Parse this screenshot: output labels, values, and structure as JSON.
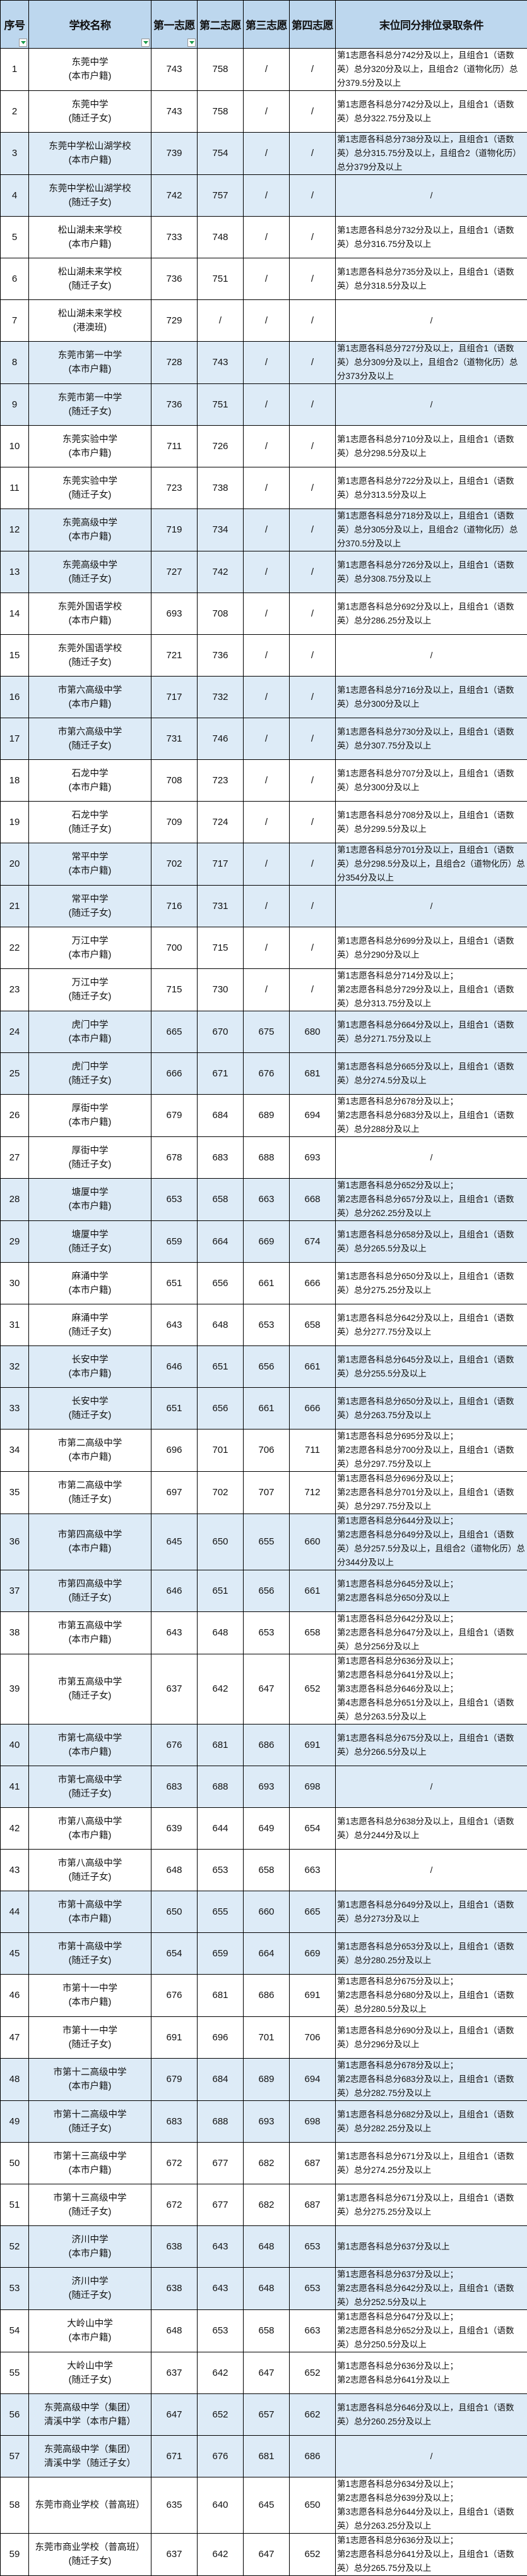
{
  "colors": {
    "header_bg": "#bdd7ee",
    "highlight_row_bg": "#ddebf7",
    "filter_arrow": "#1a9a4a"
  },
  "header": {
    "no": "序号",
    "school": "学校名称",
    "v1": "第一志愿",
    "v2": "第二志愿",
    "v3": "第三志愿",
    "v4": "第四志愿",
    "cond": "末位同分排位录取条件",
    "filter_icons": [
      "filter-dropdown-icon",
      "filter-dropdown-icon",
      "filter-dropdown-icon"
    ]
  },
  "rows": [
    {
      "no": "1",
      "name": "东莞中学\n(本市户籍)",
      "v1": "743",
      "v2": "758",
      "v3": "/",
      "v4": "/",
      "cond": "第1志愿各科总分742分及以上，且组合1（语数英）总分320分及以上，且组合2（道物化历）总分379.5分及以上",
      "hl": false
    },
    {
      "no": "2",
      "name": "东莞中学\n(随迁子女)",
      "v1": "743",
      "v2": "758",
      "v3": "/",
      "v4": "/",
      "cond": "第1志愿各科总分742分及以上，且组合1（语数英）总分322.75分及以上",
      "hl": false
    },
    {
      "no": "3",
      "name": "东莞中学松山湖学校\n(本市户籍)",
      "v1": "739",
      "v2": "754",
      "v3": "/",
      "v4": "/",
      "cond": "第1志愿各科总分738分及以上，且组合1（语数英）总分315.75分及以上，且组合2（道物化历）总分379分及以上",
      "hl": true
    },
    {
      "no": "4",
      "name": "东莞中学松山湖学校\n(随迁子女)",
      "v1": "742",
      "v2": "757",
      "v3": "/",
      "v4": "/",
      "cond": "/",
      "hl": true
    },
    {
      "no": "5",
      "name": "松山湖未来学校\n(本市户籍)",
      "v1": "733",
      "v2": "748",
      "v3": "/",
      "v4": "/",
      "cond": "第1志愿各科总分732分及以上，且组合1（语数英）总分316.75分及以上",
      "hl": false
    },
    {
      "no": "6",
      "name": "松山湖未来学校\n(随迁子女)",
      "v1": "736",
      "v2": "751",
      "v3": "/",
      "v4": "/",
      "cond": "第1志愿各科总分735分及以上，且组合1（语数英）总分318.5分及以上",
      "hl": false
    },
    {
      "no": "7",
      "name": "松山湖未来学校\n(港澳班)",
      "v1": "729",
      "v2": "/",
      "v3": "/",
      "v4": "/",
      "cond": "/",
      "hl": false
    },
    {
      "no": "8",
      "name": "东莞市第一中学\n(本市户籍)",
      "v1": "728",
      "v2": "743",
      "v3": "/",
      "v4": "/",
      "cond": "第1志愿各科总分727分及以上，且组合1（语数英）总分309分及以上，且组合2（道物化历）总分373分及以上",
      "hl": true
    },
    {
      "no": "9",
      "name": "东莞市第一中学\n(随迁子女)",
      "v1": "736",
      "v2": "751",
      "v3": "/",
      "v4": "/",
      "cond": "/",
      "hl": true
    },
    {
      "no": "10",
      "name": "东莞实验中学\n(本市户籍)",
      "v1": "711",
      "v2": "726",
      "v3": "/",
      "v4": "/",
      "cond": "第1志愿各科总分710分及以上，且组合1（语数英）总分298.5分及以上",
      "hl": false
    },
    {
      "no": "11",
      "name": "东莞实验中学\n(随迁子女)",
      "v1": "723",
      "v2": "738",
      "v3": "/",
      "v4": "/",
      "cond": "第1志愿各科总分722分及以上，且组合1（语数英）总分313.5分及以上",
      "hl": false
    },
    {
      "no": "12",
      "name": "东莞高级中学\n(本市户籍)",
      "v1": "719",
      "v2": "734",
      "v3": "/",
      "v4": "/",
      "cond": "第1志愿各科总分718分及以上，且组合1（语数英）总分305分及以上，且组合2（道物化历）总分370.5分及以上",
      "hl": true
    },
    {
      "no": "13",
      "name": "东莞高级中学\n(随迁子女)",
      "v1": "727",
      "v2": "742",
      "v3": "/",
      "v4": "/",
      "cond": "第1志愿各科总分726分及以上，且组合1（语数英）总分308.75分及以上",
      "hl": true
    },
    {
      "no": "14",
      "name": "东莞外国语学校\n(本市户籍)",
      "v1": "693",
      "v2": "708",
      "v3": "/",
      "v4": "/",
      "cond": "第1志愿各科总分692分及以上，且组合1（语数英）总分286.25分及以上",
      "hl": false
    },
    {
      "no": "15",
      "name": "东莞外国语学校\n(随迁子女)",
      "v1": "721",
      "v2": "736",
      "v3": "/",
      "v4": "/",
      "cond": "/",
      "hl": false
    },
    {
      "no": "16",
      "name": "市第六高级中学\n(本市户籍)",
      "v1": "717",
      "v2": "732",
      "v3": "/",
      "v4": "/",
      "cond": "第1志愿各科总分716分及以上，且组合1（语数英）总分300分及以上",
      "hl": true
    },
    {
      "no": "17",
      "name": "市第六高级中学\n(随迁子女)",
      "v1": "731",
      "v2": "746",
      "v3": "/",
      "v4": "/",
      "cond": "第1志愿各科总分730分及以上，且组合1（语数英）总分307.75分及以上",
      "hl": true
    },
    {
      "no": "18",
      "name": "石龙中学\n(本市户籍)",
      "v1": "708",
      "v2": "723",
      "v3": "/",
      "v4": "/",
      "cond": "第1志愿各科总分707分及以上，且组合1（语数英）总分300分及以上",
      "hl": false
    },
    {
      "no": "19",
      "name": "石龙中学\n(随迁子女)",
      "v1": "709",
      "v2": "724",
      "v3": "/",
      "v4": "/",
      "cond": "第1志愿各科总分708分及以上，且组合1（语数英）总分299.5分及以上",
      "hl": false
    },
    {
      "no": "20",
      "name": "常平中学\n(本市户籍)",
      "v1": "702",
      "v2": "717",
      "v3": "/",
      "v4": "/",
      "cond": "第1志愿各科总分701分及以上，且组合1（语数英）总分298.5分及以上，且组合2（道物化历）总分354分及以上",
      "hl": true
    },
    {
      "no": "21",
      "name": "常平中学\n(随迁子女)",
      "v1": "716",
      "v2": "731",
      "v3": "/",
      "v4": "/",
      "cond": "/",
      "hl": true
    },
    {
      "no": "22",
      "name": "万江中学\n(本市户籍)",
      "v1": "700",
      "v2": "715",
      "v3": "/",
      "v4": "/",
      "cond": "第1志愿各科总分699分及以上，且组合1（语数英）总分290分及以上",
      "hl": false
    },
    {
      "no": "23",
      "name": "万江中学\n(随迁子女)",
      "v1": "715",
      "v2": "730",
      "v3": "/",
      "v4": "/",
      "cond": "第1志愿各科总分714分及以上；\n第2志愿各科总分729分及以上，且组合1（语数英）总分313.75分及以上",
      "hl": false
    },
    {
      "no": "24",
      "name": "虎门中学\n(本市户籍)",
      "v1": "665",
      "v2": "670",
      "v3": "675",
      "v4": "680",
      "cond": "第1志愿各科总分664分及以上，且组合1（语数英）总分271.75分及以上",
      "hl": true
    },
    {
      "no": "25",
      "name": "虎门中学\n(随迁子女)",
      "v1": "666",
      "v2": "671",
      "v3": "676",
      "v4": "681",
      "cond": "第1志愿各科总分665分及以上，且组合1（语数英）总分274.5分及以上",
      "hl": true
    },
    {
      "no": "26",
      "name": "厚街中学\n(本市户籍)",
      "v1": "679",
      "v2": "684",
      "v3": "689",
      "v4": "694",
      "cond": "第1志愿各科总分678分及以上；\n第2志愿各科总分683分及以上，且组合1（语数英）总分288分及以上",
      "hl": false
    },
    {
      "no": "27",
      "name": "厚街中学\n(随迁子女)",
      "v1": "678",
      "v2": "683",
      "v3": "688",
      "v4": "693",
      "cond": "/",
      "hl": false
    },
    {
      "no": "28",
      "name": "塘厦中学\n(本市户籍)",
      "v1": "653",
      "v2": "658",
      "v3": "663",
      "v4": "668",
      "cond": "第1志愿各科总分652分及以上；\n第2志愿各科总分657分及以上，且组合1（语数英）总分262.25分及以上",
      "hl": true
    },
    {
      "no": "29",
      "name": "塘厦中学\n(随迁子女)",
      "v1": "659",
      "v2": "664",
      "v3": "669",
      "v4": "674",
      "cond": "第1志愿各科总分658分及以上，且组合1（语数英）总分265.5分及以上",
      "hl": true
    },
    {
      "no": "30",
      "name": "麻涌中学\n(本市户籍)",
      "v1": "651",
      "v2": "656",
      "v3": "661",
      "v4": "666",
      "cond": "第1志愿各科总分650分及以上，且组合1（语数英）总分275.25分及以上",
      "hl": false
    },
    {
      "no": "31",
      "name": "麻涌中学\n(随迁子女)",
      "v1": "643",
      "v2": "648",
      "v3": "653",
      "v4": "658",
      "cond": "第1志愿各科总分642分及以上，且组合1（语数英）总分277.75分及以上",
      "hl": false
    },
    {
      "no": "32",
      "name": "长安中学\n(本市户籍)",
      "v1": "646",
      "v2": "651",
      "v3": "656",
      "v4": "661",
      "cond": "第1志愿各科总分645分及以上，且组合1（语数英）总分255.5分及以上",
      "hl": true
    },
    {
      "no": "33",
      "name": "长安中学\n(随迁子女)",
      "v1": "651",
      "v2": "656",
      "v3": "661",
      "v4": "666",
      "cond": "第1志愿各科总分650分及以上，且组合1（语数英）总分263.75分及以上",
      "hl": true
    },
    {
      "no": "34",
      "name": "市第二高级中学\n(本市户籍)",
      "v1": "696",
      "v2": "701",
      "v3": "706",
      "v4": "711",
      "cond": "第1志愿各科总分695分及以上；\n第2志愿各科总分700分及以上，且组合1（语数英）总分297.75分及以上",
      "hl": false
    },
    {
      "no": "35",
      "name": "市第二高级中学\n(随迁子女)",
      "v1": "697",
      "v2": "702",
      "v3": "707",
      "v4": "712",
      "cond": "第1志愿各科总分696分及以上；\n第2志愿各科总分701分及以上，且组合1（语数英）总分297.75分及以上",
      "hl": false
    },
    {
      "no": "36",
      "name": "市第四高级中学\n(本市户籍)",
      "v1": "645",
      "v2": "650",
      "v3": "655",
      "v4": "660",
      "cond": "第1志愿各科总分644分及以上；\n第2志愿各科总分649分及以上，且组合1（语数英）总分257.5分及以上，且组合2（道物化历）总分344分及以上",
      "hl": true
    },
    {
      "no": "37",
      "name": "市第四高级中学\n(随迁子女)",
      "v1": "646",
      "v2": "651",
      "v3": "656",
      "v4": "661",
      "cond": "第1志愿各科总分645分及以上；\n第2志愿各科总分650分及以上",
      "hl": true
    },
    {
      "no": "38",
      "name": "市第五高级中学\n(本市户籍)",
      "v1": "643",
      "v2": "648",
      "v3": "653",
      "v4": "658",
      "cond": "第1志愿各科总分642分及以上；\n第2志愿各科总分647分及以上，且组合1（语数英）总分256分及以上",
      "hl": false
    },
    {
      "no": "39",
      "name": "市第五高级中学\n(随迁子女)",
      "v1": "637",
      "v2": "642",
      "v3": "647",
      "v4": "652",
      "cond": "第1志愿各科总分636分及以上；\n第2志愿各科总分641分及以上；\n第3志愿各科总分646分及以上；\n第4志愿各科总分651分及以上，且组合1（语数英）总分263.5分及以上",
      "hl": false
    },
    {
      "no": "40",
      "name": "市第七高级中学\n(本市户籍)",
      "v1": "676",
      "v2": "681",
      "v3": "686",
      "v4": "691",
      "cond": "第1志愿各科总分675分及以上，且组合1（语数英）总分266.5分及以上",
      "hl": true
    },
    {
      "no": "41",
      "name": "市第七高级中学\n(随迁子女)",
      "v1": "683",
      "v2": "688",
      "v3": "693",
      "v4": "698",
      "cond": "/",
      "hl": true
    },
    {
      "no": "42",
      "name": "市第八高级中学\n(本市户籍)",
      "v1": "639",
      "v2": "644",
      "v3": "649",
      "v4": "654",
      "cond": "第1志愿各科总分638分及以上，且组合1（语数英）总分244分及以上",
      "hl": false
    },
    {
      "no": "43",
      "name": "市第八高级中学\n(随迁子女)",
      "v1": "648",
      "v2": "653",
      "v3": "658",
      "v4": "663",
      "cond": "/",
      "hl": false
    },
    {
      "no": "44",
      "name": "市第十高级中学\n(本市户籍)",
      "v1": "650",
      "v2": "655",
      "v3": "660",
      "v4": "665",
      "cond": "第1志愿各科总分649分及以上，且组合1（语数英）总分273分及以上",
      "hl": true
    },
    {
      "no": "45",
      "name": "市第十高级中学\n(随迁子女)",
      "v1": "654",
      "v2": "659",
      "v3": "664",
      "v4": "669",
      "cond": "第1志愿各科总分653分及以上，且组合1（语数英）总分280.25分及以上",
      "hl": true
    },
    {
      "no": "46",
      "name": "市第十一中学\n(本市户籍)",
      "v1": "676",
      "v2": "681",
      "v3": "686",
      "v4": "691",
      "cond": "第1志愿各科总分675分及以上；\n第2志愿各科总分680分及以上，且组合1（语数英）总分280.5分及以上",
      "hl": false
    },
    {
      "no": "47",
      "name": "市第十一中学\n(随迁子女)",
      "v1": "691",
      "v2": "696",
      "v3": "701",
      "v4": "706",
      "cond": "第1志愿各科总分690分及以上，且组合1（语数英）总分296分及以上",
      "hl": false
    },
    {
      "no": "48",
      "name": "市第十二高级中学\n(本市户籍)",
      "v1": "679",
      "v2": "684",
      "v3": "689",
      "v4": "694",
      "cond": "第1志愿各科总分678分及以上；\n第2志愿各科总分683分及以上，且组合1（语数英）总分282.75分及以上",
      "hl": true
    },
    {
      "no": "49",
      "name": "市第十二高级中学\n(随迁子女)",
      "v1": "683",
      "v2": "688",
      "v3": "693",
      "v4": "698",
      "cond": "第1志愿各科总分682分及以上，且组合1（语数英）总分282.25分及以上",
      "hl": true
    },
    {
      "no": "50",
      "name": "市第十三高级中学\n(本市户籍)",
      "v1": "672",
      "v2": "677",
      "v3": "682",
      "v4": "687",
      "cond": "第1志愿各科总分671分及以上，且组合1（语数英）总分274.25分及以上",
      "hl": false
    },
    {
      "no": "51",
      "name": "市第十三高级中学\n(随迁子女)",
      "v1": "672",
      "v2": "677",
      "v3": "682",
      "v4": "687",
      "cond": "第1志愿各科总分671分及以上，且组合1（语数英）总分275.25分及以上",
      "hl": false
    },
    {
      "no": "52",
      "name": "济川中学\n(本市户籍)",
      "v1": "638",
      "v2": "643",
      "v3": "648",
      "v4": "653",
      "cond": "第1志愿各科总分637分及以上",
      "hl": true
    },
    {
      "no": "53",
      "name": "济川中学\n(随迁子女)",
      "v1": "638",
      "v2": "643",
      "v3": "648",
      "v4": "653",
      "cond": "第1志愿各科总分637分及以上；\n第2志愿各科总分642分及以上，且组合1（语数英）总分252.5分及以上",
      "hl": true
    },
    {
      "no": "54",
      "name": "大岭山中学\n(本市户籍)",
      "v1": "648",
      "v2": "653",
      "v3": "658",
      "v4": "663",
      "cond": "第1志愿各科总分647分及以上；\n第2志愿各科总分652分及以上，且组合1（语数英）总分250.5分及以上",
      "hl": false
    },
    {
      "no": "55",
      "name": "大岭山中学\n(随迁子女)",
      "v1": "637",
      "v2": "642",
      "v3": "647",
      "v4": "652",
      "cond": "第1志愿各科总分636分及以上；\n第2志愿各科总分641分及以上",
      "hl": false
    },
    {
      "no": "56",
      "name": "东莞高级中学（集团）\n清溪中学（本市户籍）",
      "v1": "647",
      "v2": "652",
      "v3": "657",
      "v4": "662",
      "cond": "第1志愿各科总分646分及以上，且组合1（语数英）总分260.25分及以上",
      "hl": true
    },
    {
      "no": "57",
      "name": "东莞高级中学（集团）\n清溪中学（随迁子女）",
      "v1": "671",
      "v2": "676",
      "v3": "681",
      "v4": "686",
      "cond": "/",
      "hl": true
    },
    {
      "no": "58",
      "name": "东莞市商业学校（普高班）",
      "v1": "635",
      "v2": "640",
      "v3": "645",
      "v4": "650",
      "cond": "第1志愿各科总分634分及以上；\n第2志愿各科总分639分及以上；\n第3志愿各科总分644分及以上，且组合1（语数英）总分263.25分及以上",
      "hl": false
    },
    {
      "no": "59",
      "name": "东莞市商业学校（普高班）(随迁子女)",
      "v1": "637",
      "v2": "642",
      "v3": "647",
      "v4": "652",
      "cond": "第1志愿各科总分636分及以上；\n第2志愿各科总分641分及以上，且组合1（语数英）总分265.75分及以上",
      "hl": false
    }
  ]
}
